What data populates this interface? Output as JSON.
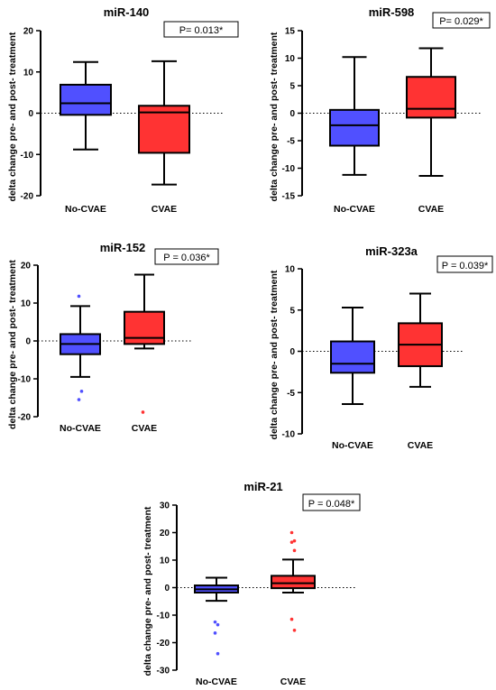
{
  "chart_data": [
    {
      "type": "box",
      "title": "miR-140",
      "pvalue": "P= 0.013*",
      "ylabel": "delta change pre- and post- treatment",
      "ylim": [
        -20,
        20
      ],
      "yticks": [
        -20,
        -10,
        0,
        10,
        20
      ],
      "categories": [
        "No-CVAE",
        "CVAE"
      ],
      "boxes": [
        {
          "category": "No-CVAE",
          "min": -8.8,
          "q1": -0.4,
          "median": 2.4,
          "q3": 6.9,
          "max": 12.4,
          "outliers": [],
          "color": "#5050ff"
        },
        {
          "category": "CVAE",
          "min": -17.3,
          "q1": -9.6,
          "median": 0.2,
          "q3": 1.8,
          "max": 12.6,
          "outliers": [],
          "color": "#ff3333"
        }
      ]
    },
    {
      "type": "box",
      "title": "miR-598",
      "pvalue": "P= 0.029*",
      "ylabel": "delta change pre- and post- treatment",
      "ylim": [
        -15,
        15
      ],
      "yticks": [
        -15,
        -10,
        -5,
        0,
        5,
        10,
        15
      ],
      "categories": [
        "No-CVAE",
        "CVAE"
      ],
      "boxes": [
        {
          "category": "No-CVAE",
          "min": -11.2,
          "q1": -5.9,
          "median": -2.2,
          "q3": 0.6,
          "max": 10.2,
          "outliers": [],
          "color": "#5050ff"
        },
        {
          "category": "CVAE",
          "min": -11.4,
          "q1": -0.8,
          "median": 0.8,
          "q3": 6.6,
          "max": 11.8,
          "outliers": [],
          "color": "#ff3333"
        }
      ]
    },
    {
      "type": "box",
      "title": "miR-152",
      "pvalue": "P = 0.036*",
      "ylabel": "delta change pre- and post- treatment",
      "ylim": [
        -20,
        20
      ],
      "yticks": [
        -20,
        -10,
        0,
        10,
        20
      ],
      "categories": [
        "No-CVAE",
        "CVAE"
      ],
      "boxes": [
        {
          "category": "No-CVAE",
          "min": -9.5,
          "q1": -3.5,
          "median": -0.8,
          "q3": 1.8,
          "max": 9.2,
          "outliers": [
            11.8,
            -13.3,
            -15.5
          ],
          "color": "#5050ff"
        },
        {
          "category": "CVAE",
          "min": -2.0,
          "q1": -0.8,
          "median": 0.8,
          "q3": 7.7,
          "max": 17.5,
          "outliers": [
            -18.8
          ],
          "color": "#ff3333"
        }
      ]
    },
    {
      "type": "box",
      "title": "miR-323a",
      "pvalue": "P = 0.039*",
      "ylabel": "delta change pre- and post- treatment",
      "ylim": [
        -10,
        10
      ],
      "yticks": [
        -10,
        -5,
        0,
        5,
        10
      ],
      "categories": [
        "No-CVAE",
        "CVAE"
      ],
      "boxes": [
        {
          "category": "No-CVAE",
          "min": -6.4,
          "q1": -2.6,
          "median": -1.5,
          "q3": 1.2,
          "max": 5.3,
          "outliers": [],
          "color": "#5050ff"
        },
        {
          "category": "CVAE",
          "min": -4.3,
          "q1": -1.8,
          "median": 0.8,
          "q3": 3.4,
          "max": 7.0,
          "outliers": [],
          "color": "#ff3333"
        }
      ]
    },
    {
      "type": "box",
      "title": "miR-21",
      "pvalue": "P = 0.048*",
      "ylabel": "delta change pre- and post- treatment",
      "ylim": [
        -30,
        30
      ],
      "yticks": [
        -30,
        -20,
        -10,
        0,
        10,
        20,
        30
      ],
      "categories": [
        "No-CVAE",
        "CVAE"
      ],
      "boxes": [
        {
          "category": "No-CVAE",
          "min": -4.8,
          "q1": -1.8,
          "median": -0.6,
          "q3": 0.8,
          "max": 3.6,
          "outliers": [
            -12.5,
            -13.5,
            -16.5,
            -24.0
          ],
          "color": "#5050ff"
        },
        {
          "category": "CVAE",
          "min": -1.8,
          "q1": -0.2,
          "median": 1.6,
          "q3": 4.3,
          "max": 10.2,
          "outliers": [
            20.0,
            17.0,
            16.5,
            13.5,
            -11.5,
            -15.5
          ],
          "color": "#ff3333"
        }
      ]
    }
  ]
}
